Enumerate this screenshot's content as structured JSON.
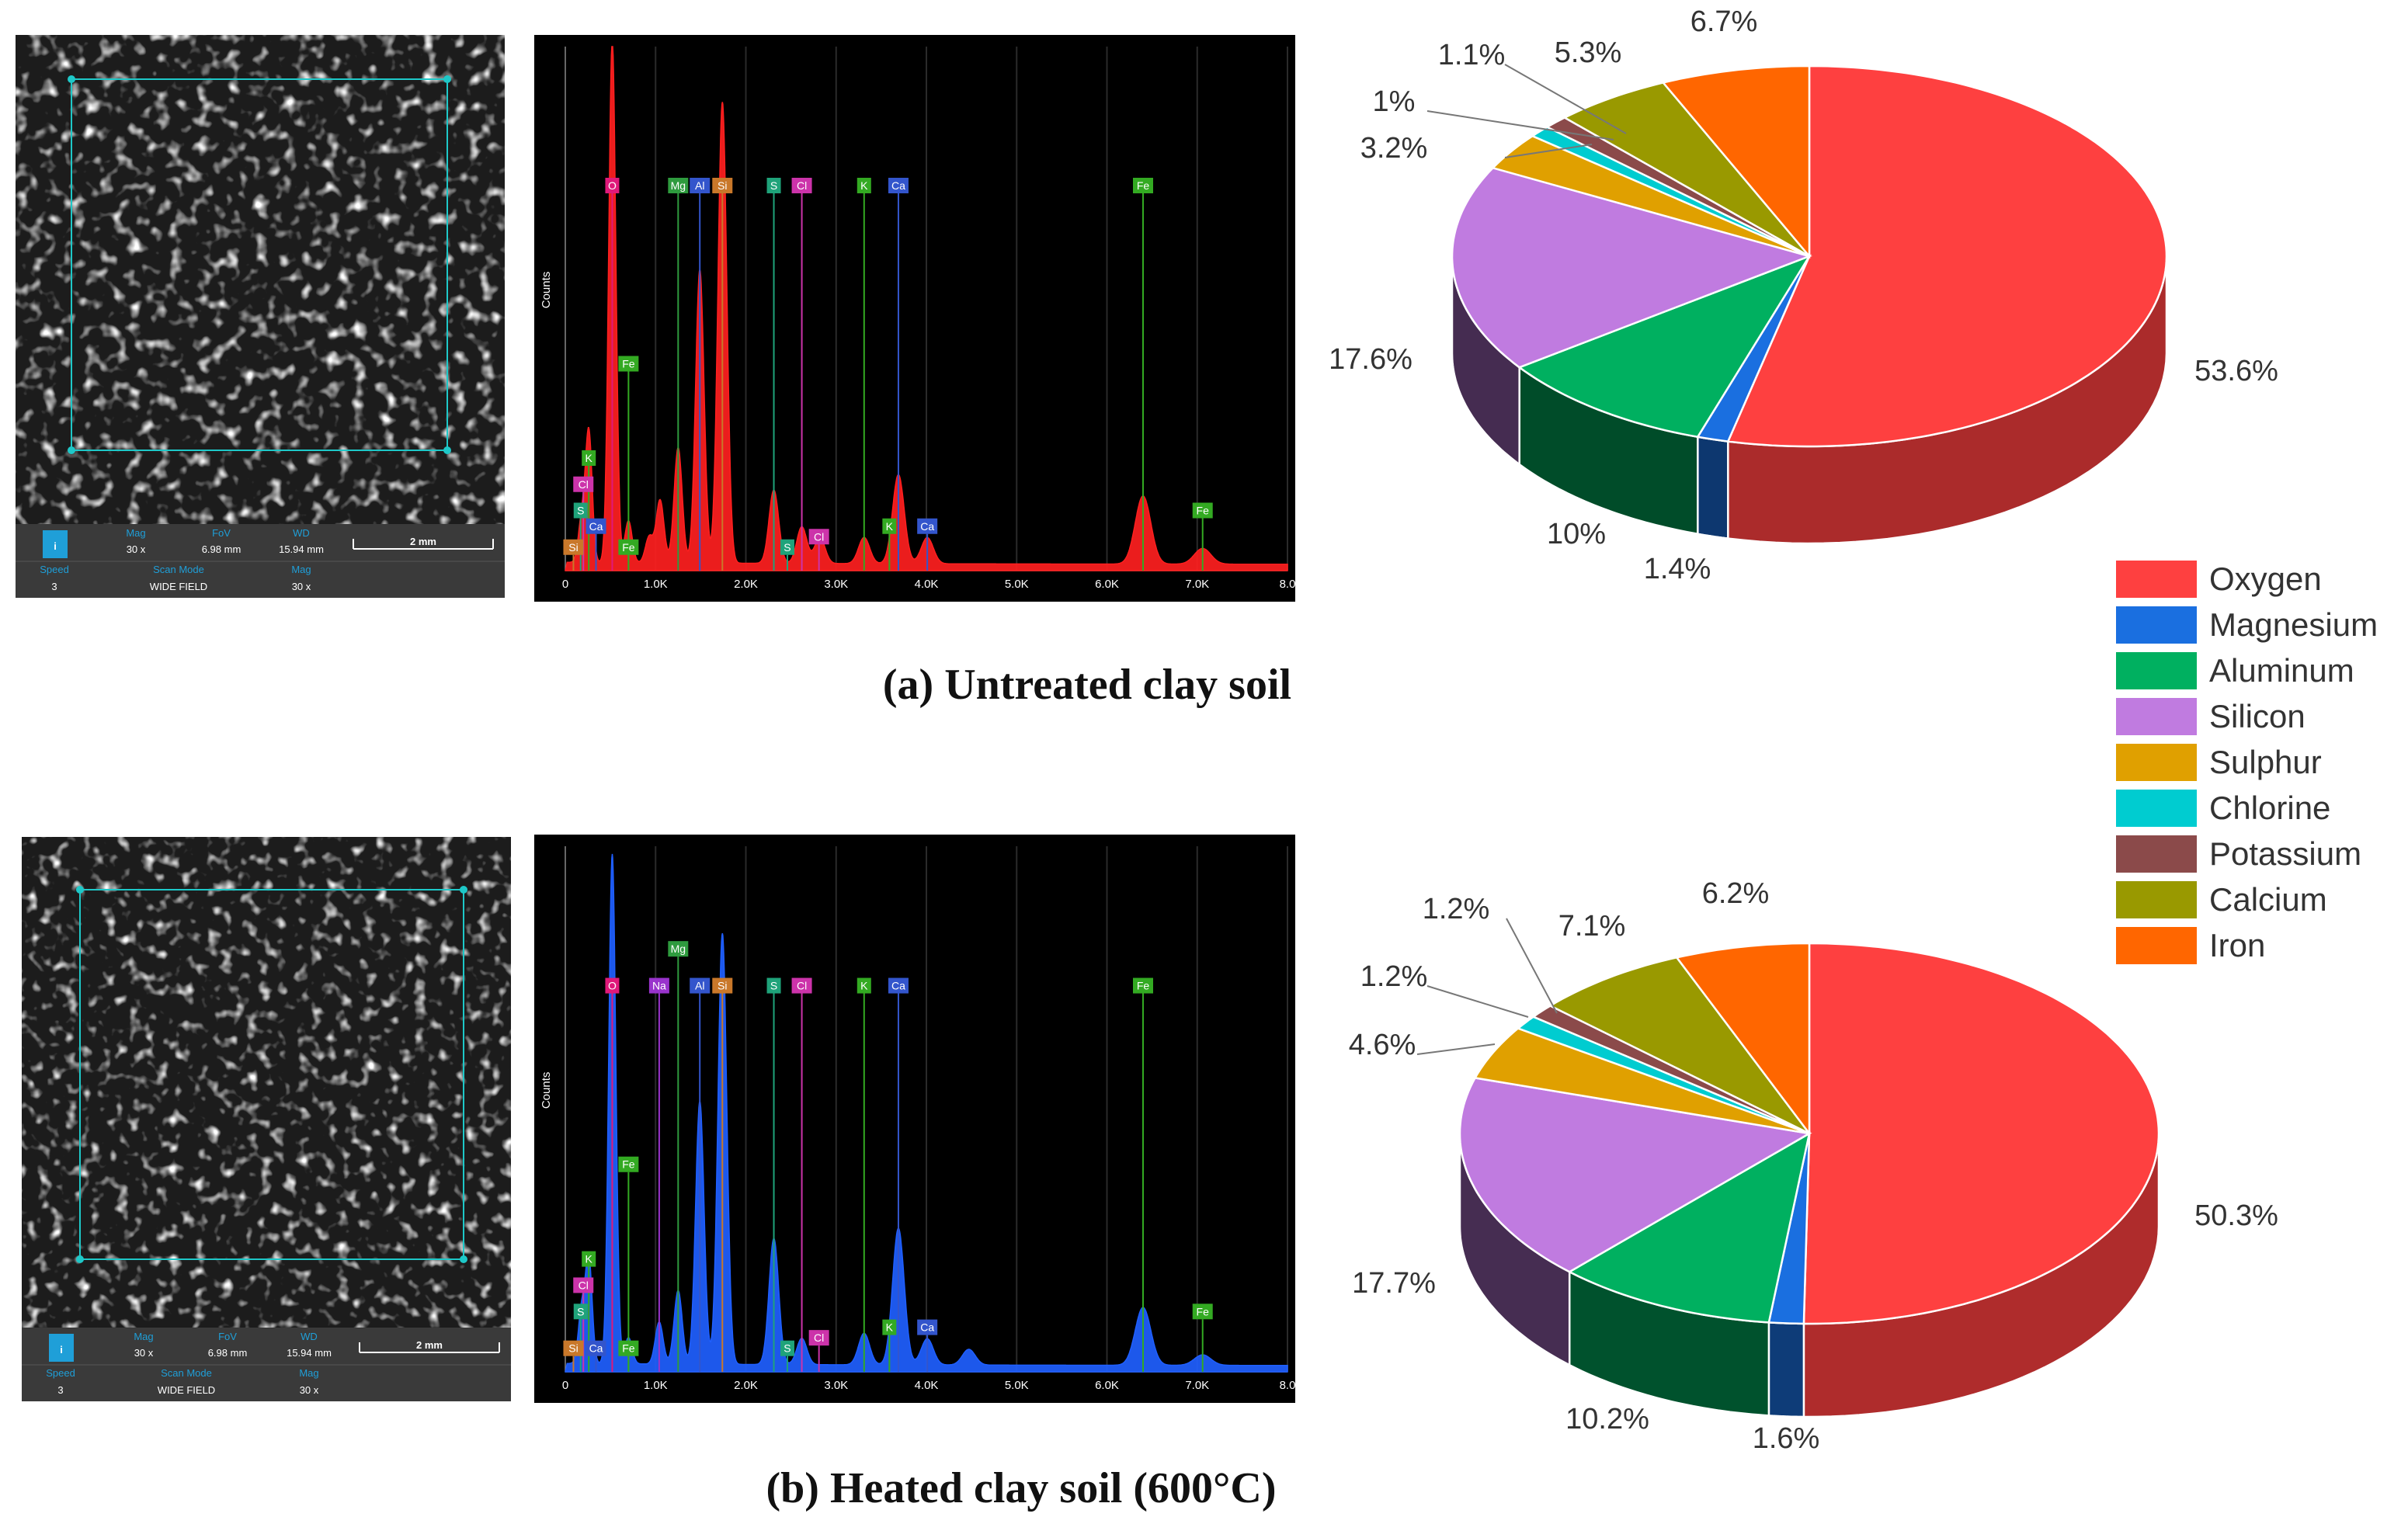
{
  "panels": [
    {
      "caption": "(a) Untreated clay soil",
      "sem": {
        "labels": {
          "mag": "Mag",
          "fov": "FoV",
          "wd": "WD",
          "speed": "Speed",
          "scan_mode": "Scan Mode"
        },
        "mag": "30 x",
        "fov": "6.98 mm",
        "wd": "15.94 mm",
        "scale": "2 mm",
        "speed": "3",
        "scan_mode": "WIDE FIELD"
      },
      "eds": {
        "color": "#ff1f1f",
        "y_label": "Counts",
        "x_ticks": [
          "0",
          "1.0K",
          "2.0K",
          "3.0K",
          "4.0K",
          "5.0K",
          "6.0K",
          "7.0K",
          "8.0"
        ],
        "x_range": [
          0,
          8.0
        ],
        "peaks": [
          [
            0.18,
            0.08
          ],
          [
            0.26,
            0.25
          ],
          [
            0.52,
            1.0
          ],
          [
            0.7,
            0.08
          ],
          [
            0.93,
            0.05
          ],
          [
            1.05,
            0.12
          ],
          [
            1.25,
            0.22
          ],
          [
            1.49,
            0.56
          ],
          [
            1.74,
            0.88
          ],
          [
            2.31,
            0.14
          ],
          [
            2.62,
            0.07
          ],
          [
            2.82,
            0.05
          ],
          [
            3.31,
            0.05
          ],
          [
            3.69,
            0.17
          ],
          [
            4.01,
            0.05
          ],
          [
            6.4,
            0.13
          ],
          [
            7.06,
            0.03
          ]
        ],
        "lines": [
          {
            "el": "O",
            "kev": 0.52,
            "tag": 0.72,
            "color": "#e0197a"
          },
          {
            "el": "Mg",
            "kev": 1.25,
            "tag": 0.72,
            "color": "#2e9b3e"
          },
          {
            "el": "Al",
            "kev": 1.49,
            "tag": 0.72,
            "color": "#3355cc"
          },
          {
            "el": "Si",
            "kev": 1.74,
            "tag": 0.72,
            "color": "#c9782a"
          },
          {
            "el": "S",
            "kev": 2.31,
            "tag": 0.72,
            "color": "#1fa37a"
          },
          {
            "el": "Cl",
            "kev": 2.62,
            "tag": 0.72,
            "color": "#cc33aa"
          },
          {
            "el": "K",
            "kev": 3.31,
            "tag": 0.72,
            "color": "#33aa22"
          },
          {
            "el": "Ca",
            "kev": 3.69,
            "tag": 0.72,
            "color": "#3355cc"
          },
          {
            "el": "Fe",
            "kev": 6.4,
            "tag": 0.72,
            "color": "#33aa22"
          },
          {
            "el": "Fe",
            "kev": 0.7,
            "tag": 0.38,
            "color": "#33aa22"
          },
          {
            "el": "K",
            "kev": 0.26,
            "tag": 0.2,
            "color": "#33aa22"
          },
          {
            "el": "Cl",
            "kev": 0.2,
            "tag": 0.15,
            "color": "#cc33aa"
          },
          {
            "el": "S",
            "kev": 0.17,
            "tag": 0.1,
            "color": "#1fa37a"
          },
          {
            "el": "Ca",
            "kev": 0.34,
            "tag": 0.07,
            "color": "#3355cc"
          },
          {
            "el": "Si",
            "kev": 0.09,
            "tag": 0.03,
            "color": "#c9782a"
          },
          {
            "el": "Fe",
            "kev": 0.7,
            "tag": 0.03,
            "color": "#33aa22"
          },
          {
            "el": "S",
            "kev": 2.46,
            "tag": 0.03,
            "color": "#1fa37a"
          },
          {
            "el": "Cl",
            "kev": 2.81,
            "tag": 0.05,
            "color": "#cc33aa"
          },
          {
            "el": "K",
            "kev": 3.59,
            "tag": 0.07,
            "color": "#33aa22"
          },
          {
            "el": "Ca",
            "kev": 4.01,
            "tag": 0.07,
            "color": "#3355cc"
          },
          {
            "el": "Fe",
            "kev": 7.06,
            "tag": 0.1,
            "color": "#33aa22"
          }
        ]
      }
    },
    {
      "caption": "(b) Heated clay soil (600°C)",
      "sem": {
        "labels": {
          "mag": "Mag",
          "fov": "FoV",
          "wd": "WD",
          "speed": "Speed",
          "scan_mode": "Scan Mode"
        },
        "mag": "30 x",
        "fov": "6.98 mm",
        "wd": "15.94 mm",
        "scale": "2 mm",
        "speed": "3",
        "scan_mode": "WIDE FIELD"
      },
      "eds": {
        "color": "#1f5fff",
        "y_label": "Counts",
        "x_ticks": [
          "0",
          "1.0K",
          "2.0K",
          "3.0K",
          "4.0K",
          "5.0K",
          "6.0K",
          "7.0K",
          "8.0"
        ],
        "x_range": [
          0,
          8.0
        ],
        "peaks": [
          [
            0.18,
            0.1
          ],
          [
            0.26,
            0.2
          ],
          [
            0.52,
            0.97
          ],
          [
            0.7,
            0.05
          ],
          [
            1.04,
            0.08
          ],
          [
            1.25,
            0.14
          ],
          [
            1.49,
            0.5
          ],
          [
            1.74,
            0.82
          ],
          [
            2.31,
            0.24
          ],
          [
            2.62,
            0.05
          ],
          [
            3.31,
            0.06
          ],
          [
            3.69,
            0.26
          ],
          [
            4.01,
            0.05
          ],
          [
            4.47,
            0.03
          ],
          [
            6.4,
            0.11
          ],
          [
            7.06,
            0.02
          ]
        ],
        "lines": [
          {
            "el": "O",
            "kev": 0.52,
            "tag": 0.72,
            "color": "#e0197a"
          },
          {
            "el": "Na",
            "kev": 1.04,
            "tag": 0.72,
            "color": "#9933cc"
          },
          {
            "el": "Mg",
            "kev": 1.25,
            "tag": 0.79,
            "color": "#2e9b3e"
          },
          {
            "el": "Al",
            "kev": 1.49,
            "tag": 0.72,
            "color": "#3355cc"
          },
          {
            "el": "Si",
            "kev": 1.74,
            "tag": 0.72,
            "color": "#c9782a"
          },
          {
            "el": "S",
            "kev": 2.31,
            "tag": 0.72,
            "color": "#1fa37a"
          },
          {
            "el": "Cl",
            "kev": 2.62,
            "tag": 0.72,
            "color": "#cc33aa"
          },
          {
            "el": "K",
            "kev": 3.31,
            "tag": 0.72,
            "color": "#33aa22"
          },
          {
            "el": "Ca",
            "kev": 3.69,
            "tag": 0.72,
            "color": "#3355cc"
          },
          {
            "el": "Fe",
            "kev": 6.4,
            "tag": 0.72,
            "color": "#33aa22"
          },
          {
            "el": "Fe",
            "kev": 0.7,
            "tag": 0.38,
            "color": "#33aa22"
          },
          {
            "el": "K",
            "kev": 0.26,
            "tag": 0.2,
            "color": "#33aa22"
          },
          {
            "el": "Cl",
            "kev": 0.2,
            "tag": 0.15,
            "color": "#cc33aa"
          },
          {
            "el": "S",
            "kev": 0.17,
            "tag": 0.1,
            "color": "#1fa37a"
          },
          {
            "el": "Ca",
            "kev": 0.34,
            "tag": 0.03,
            "color": "#3355cc"
          },
          {
            "el": "Si",
            "kev": 0.09,
            "tag": 0.03,
            "color": "#c9782a"
          },
          {
            "el": "Fe",
            "kev": 0.7,
            "tag": 0.03,
            "color": "#33aa22"
          },
          {
            "el": "S",
            "kev": 2.46,
            "tag": 0.03,
            "color": "#1fa37a"
          },
          {
            "el": "Cl",
            "kev": 2.81,
            "tag": 0.05,
            "color": "#cc33aa"
          },
          {
            "el": "K",
            "kev": 3.59,
            "tag": 0.07,
            "color": "#33aa22"
          },
          {
            "el": "Ca",
            "kev": 4.01,
            "tag": 0.07,
            "color": "#3355cc"
          },
          {
            "el": "Fe",
            "kev": 7.06,
            "tag": 0.1,
            "color": "#33aa22"
          }
        ]
      }
    }
  ],
  "chart_data": [
    {
      "type": "pie",
      "title": "(a) Untreated clay soil",
      "categories": [
        "Oxygen",
        "Magnesium",
        "Aluminum",
        "Silicon",
        "Sulphur",
        "Chlorine",
        "Potassium",
        "Calcium",
        "Iron"
      ],
      "values": [
        53.6,
        1.4,
        10,
        17.6,
        3.2,
        1,
        1.1,
        5.3,
        6.7
      ],
      "labels": [
        "53.6%",
        "1.4%",
        "10%",
        "17.6%",
        "3.2%",
        "1%",
        "1.1%",
        "5.3%",
        "6.7%"
      ],
      "colors": [
        "#fe4040",
        "#1a6fe0",
        "#00b060",
        "#c07be0",
        "#e0a000",
        "#00ccd0",
        "#8b4a4a",
        "#999900",
        "#ff6600"
      ]
    },
    {
      "type": "pie",
      "title": "(b) Heated clay soil (600°C)",
      "categories": [
        "Oxygen",
        "Magnesium",
        "Aluminum",
        "Silicon",
        "Sulphur",
        "Chlorine",
        "Potassium",
        "Calcium",
        "Iron"
      ],
      "values": [
        50.3,
        1.6,
        10.2,
        17.7,
        4.6,
        1.2,
        1.2,
        7.1,
        6.2
      ],
      "labels": [
        "50.3%",
        "1.6%",
        "10.2%",
        "17.7%",
        "4.6%",
        "1.2%",
        "1.2%",
        "7.1%",
        "6.2%"
      ],
      "colors": [
        "#fe4040",
        "#1a6fe0",
        "#00b060",
        "#c07be0",
        "#e0a000",
        "#00ccd0",
        "#8b4a4a",
        "#999900",
        "#ff6600"
      ]
    }
  ],
  "legend": {
    "items": [
      "Oxygen",
      "Magnesium",
      "Aluminum",
      "Silicon",
      "Sulphur",
      "Chlorine",
      "Potassium",
      "Calcium",
      "Iron"
    ],
    "colors": [
      "#fe4040",
      "#1a6fe0",
      "#00b060",
      "#c07be0",
      "#e0a000",
      "#00ccd0",
      "#8b4a4a",
      "#999900",
      "#ff6600"
    ]
  }
}
